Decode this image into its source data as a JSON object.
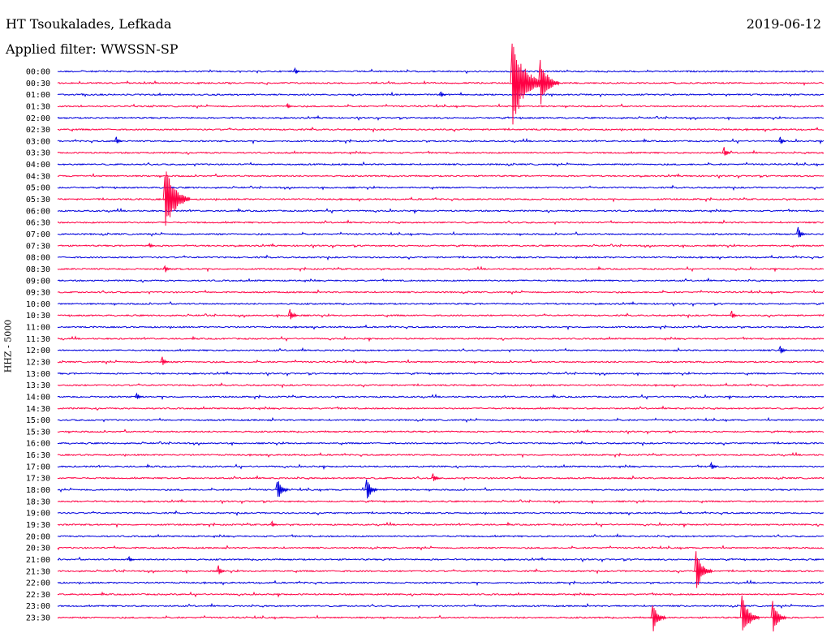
{
  "header": {
    "station": "HT Tsoukalades, Lefkada",
    "filter": "Applied filter: WWSSN-SP",
    "date": "2019-06-12"
  },
  "axis": {
    "ylabel": "HHZ - 5000"
  },
  "colors": {
    "even_trace": "#0000dd",
    "odd_trace": "#ff0044"
  },
  "chart_data": {
    "type": "line",
    "title": "HT Tsoukalades, Lefkada",
    "subtitle": "Applied filter: WWSSN-SP",
    "date": "2019-06-12",
    "ylabel": "HHZ - 5000",
    "xlabel": "",
    "grid": false,
    "trace_duration_minutes": 30,
    "rows": [
      "00:00",
      "00:30",
      "01:00",
      "01:30",
      "02:00",
      "02:30",
      "03:00",
      "03:30",
      "04:00",
      "04:30",
      "05:00",
      "05:30",
      "06:00",
      "06:30",
      "07:00",
      "07:30",
      "08:00",
      "08:30",
      "09:00",
      "09:30",
      "10:00",
      "10:30",
      "11:00",
      "11:30",
      "12:00",
      "12:30",
      "13:00",
      "13:30",
      "14:00",
      "14:30",
      "15:00",
      "15:30",
      "16:00",
      "16:30",
      "17:00",
      "17:30",
      "18:00",
      "18:30",
      "19:00",
      "19:30",
      "20:00",
      "20:30",
      "21:00",
      "21:30",
      "22:00",
      "22:30",
      "23:00",
      "23:30"
    ],
    "events": [
      {
        "row": "00:00",
        "minute": 9.3,
        "amplitude": 0.3
      },
      {
        "row": "00:30",
        "minute": 17.8,
        "amplitude": 4.0
      },
      {
        "row": "00:30",
        "minute": 18.9,
        "amplitude": 2.2
      },
      {
        "row": "01:00",
        "minute": 15.0,
        "amplitude": 0.3
      },
      {
        "row": "01:30",
        "minute": 9.0,
        "amplitude": 0.3
      },
      {
        "row": "03:00",
        "minute": 2.3,
        "amplitude": 0.4
      },
      {
        "row": "03:00",
        "minute": 28.3,
        "amplitude": 0.4
      },
      {
        "row": "03:30",
        "minute": 26.1,
        "amplitude": 0.5
      },
      {
        "row": "05:30",
        "minute": 4.2,
        "amplitude": 3.0
      },
      {
        "row": "07:00",
        "minute": 29.0,
        "amplitude": 0.6
      },
      {
        "row": "07:30",
        "minute": 3.6,
        "amplitude": 0.3
      },
      {
        "row": "08:30",
        "minute": 4.2,
        "amplitude": 0.4
      },
      {
        "row": "10:30",
        "minute": 9.1,
        "amplitude": 0.7
      },
      {
        "row": "10:30",
        "minute": 26.4,
        "amplitude": 0.4
      },
      {
        "row": "12:00",
        "minute": 28.3,
        "amplitude": 0.5
      },
      {
        "row": "12:30",
        "minute": 4.1,
        "amplitude": 0.5
      },
      {
        "row": "14:00",
        "minute": 3.1,
        "amplitude": 0.4
      },
      {
        "row": "17:00",
        "minute": 25.6,
        "amplitude": 0.4
      },
      {
        "row": "17:30",
        "minute": 14.7,
        "amplitude": 0.5
      },
      {
        "row": "18:00",
        "minute": 8.6,
        "amplitude": 1.1
      },
      {
        "row": "18:00",
        "minute": 12.1,
        "amplitude": 1.1
      },
      {
        "row": "19:30",
        "minute": 8.4,
        "amplitude": 0.3
      },
      {
        "row": "21:00",
        "minute": 2.8,
        "amplitude": 0.3
      },
      {
        "row": "21:30",
        "minute": 6.3,
        "amplitude": 0.5
      },
      {
        "row": "21:30",
        "minute": 25.0,
        "amplitude": 1.8
      },
      {
        "row": "23:30",
        "minute": 23.3,
        "amplitude": 1.4
      },
      {
        "row": "23:30",
        "minute": 26.8,
        "amplitude": 2.0
      },
      {
        "row": "23:30",
        "minute": 28.0,
        "amplitude": 1.5
      }
    ]
  }
}
